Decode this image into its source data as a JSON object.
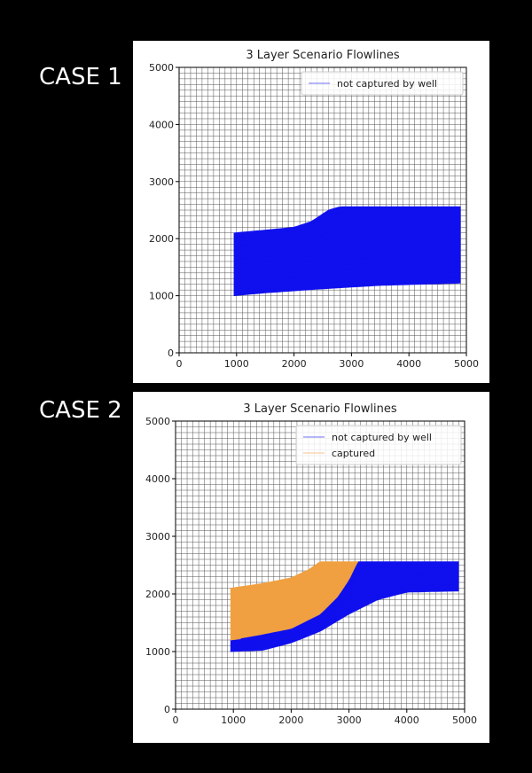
{
  "labels": {
    "case1": "CASE 1",
    "case2": "CASE 2"
  },
  "colors": {
    "not_captured": "#1010ee",
    "captured": "#f0a040",
    "grid": "#555555",
    "background": "#000000"
  },
  "chart_data": [
    {
      "type": "line",
      "title": "3 Layer Scenario Flowlines",
      "xlabel": "",
      "ylabel": "",
      "xlim": [
        0,
        5000
      ],
      "ylim": [
        0,
        5000
      ],
      "xticks": [
        0,
        1000,
        2000,
        3000,
        4000,
        5000
      ],
      "yticks": [
        0,
        1000,
        2000,
        3000,
        4000,
        5000
      ],
      "grid": true,
      "grid_spacing": 100,
      "legend_position": "top-right",
      "legend": [
        "not captured by well"
      ],
      "series": [
        {
          "name": "not captured by well",
          "color": "#1010ee",
          "upper_boundary": [
            [
              950,
              2100
            ],
            [
              1500,
              2150
            ],
            [
              2000,
              2200
            ],
            [
              2300,
              2300
            ],
            [
              2600,
              2500
            ],
            [
              2800,
              2560
            ],
            [
              4900,
              2560
            ]
          ],
          "lower_boundary": [
            [
              950,
              1000
            ],
            [
              1500,
              1050
            ],
            [
              2500,
              1120
            ],
            [
              3500,
              1180
            ],
            [
              4900,
              1220
            ]
          ]
        }
      ]
    },
    {
      "type": "line",
      "title": "3 Layer Scenario Flowlines",
      "xlabel": "",
      "ylabel": "",
      "xlim": [
        0,
        5000
      ],
      "ylim": [
        0,
        5000
      ],
      "xticks": [
        0,
        1000,
        2000,
        3000,
        4000,
        5000
      ],
      "yticks": [
        0,
        1000,
        2000,
        3000,
        4000,
        5000
      ],
      "grid": true,
      "grid_spacing": 100,
      "legend_position": "top-right",
      "legend": [
        "not captured by well",
        "captured"
      ],
      "series": [
        {
          "name": "not captured by well",
          "color": "#1010ee",
          "upper_boundary": [
            [
              950,
              1200
            ],
            [
              1500,
              1300
            ],
            [
              2000,
              1400
            ],
            [
              2500,
              1650
            ],
            [
              2800,
              1950
            ],
            [
              3000,
              2250
            ],
            [
              3150,
              2560
            ],
            [
              4900,
              2560
            ]
          ],
          "lower_boundary": [
            [
              950,
              1000
            ],
            [
              1500,
              1020
            ],
            [
              2000,
              1150
            ],
            [
              2500,
              1350
            ],
            [
              3000,
              1650
            ],
            [
              3500,
              1900
            ],
            [
              4000,
              2030
            ],
            [
              4900,
              2050
            ]
          ]
        },
        {
          "name": "captured",
          "color": "#f0a040",
          "upper_boundary": [
            [
              950,
              2100
            ],
            [
              1500,
              2180
            ],
            [
              2000,
              2280
            ],
            [
              2300,
              2420
            ],
            [
              2500,
              2560
            ],
            [
              3150,
              2560
            ]
          ],
          "lower_boundary": [
            [
              950,
              1200
            ],
            [
              1500,
              1300
            ],
            [
              2000,
              1400
            ],
            [
              2500,
              1650
            ],
            [
              2800,
              1950
            ],
            [
              3000,
              2250
            ],
            [
              3150,
              2560
            ]
          ]
        }
      ]
    }
  ]
}
